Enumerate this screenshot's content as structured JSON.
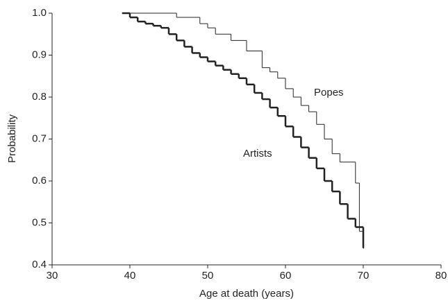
{
  "chart_data": {
    "type": "step",
    "xlabel": "Age at death (years)",
    "ylabel": "Probability",
    "xlim": [
      30,
      80
    ],
    "xticks": [
      30,
      40,
      50,
      60,
      70,
      80
    ],
    "ylim": [
      0.4,
      1.0
    ],
    "yticks": [
      0.4,
      0.5,
      0.6,
      0.7,
      0.8,
      0.9,
      {
        "value": 1,
        "label": "1.0"
      }
    ],
    "series": [
      {
        "name": "Popes",
        "color": "#222222",
        "x": [
          39,
          46,
          49,
          50,
          51,
          53,
          55,
          57,
          58,
          59,
          60,
          61,
          62,
          63,
          64,
          65,
          66,
          67,
          69,
          69.5,
          70
        ],
        "values": [
          1.0,
          0.99,
          0.975,
          0.965,
          0.95,
          0.935,
          0.91,
          0.87,
          0.86,
          0.845,
          0.82,
          0.8,
          0.78,
          0.765,
          0.735,
          0.7,
          0.665,
          0.645,
          0.595,
          0.48,
          0.48
        ]
      },
      {
        "name": "Artists",
        "color": "#222222",
        "x": [
          39,
          40,
          41,
          42,
          43,
          44,
          45,
          46,
          47,
          48,
          49,
          50,
          51,
          52,
          53,
          54,
          55,
          56,
          57,
          58,
          59,
          60,
          61,
          62,
          63,
          64,
          65,
          66,
          67,
          68,
          69,
          70
        ],
        "values": [
          1.0,
          0.99,
          0.98,
          0.975,
          0.97,
          0.965,
          0.95,
          0.935,
          0.92,
          0.905,
          0.895,
          0.885,
          0.875,
          0.865,
          0.855,
          0.845,
          0.83,
          0.81,
          0.795,
          0.775,
          0.755,
          0.73,
          0.705,
          0.68,
          0.655,
          0.63,
          0.6,
          0.575,
          0.545,
          0.51,
          0.49,
          0.44
        ]
      }
    ]
  }
}
